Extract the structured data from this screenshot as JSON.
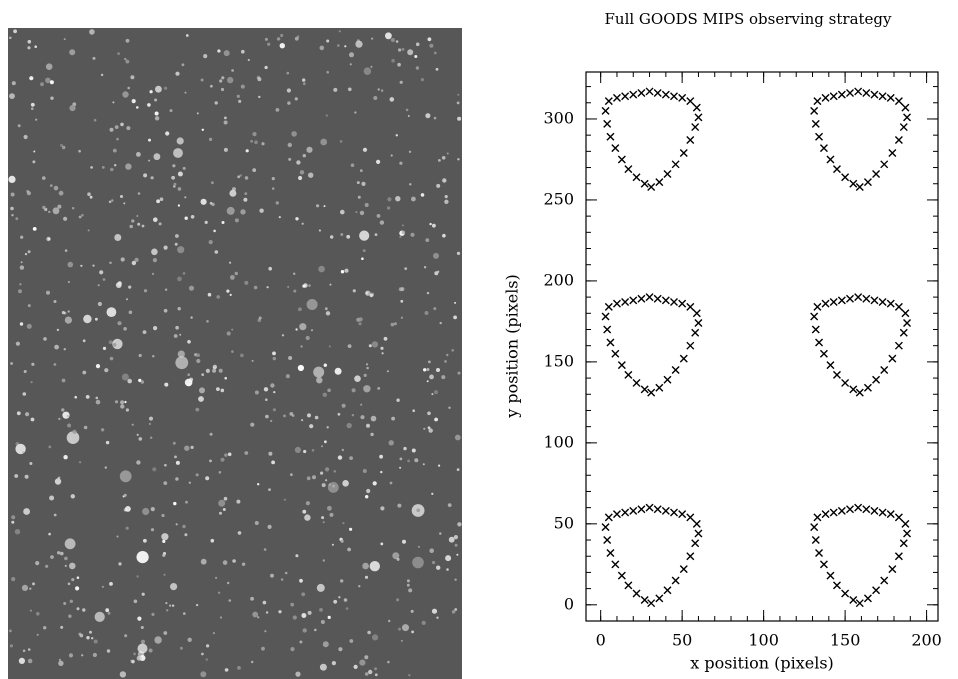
{
  "chart_data": {
    "type": "scatter",
    "title": "Full GOODS MIPS observing strategy",
    "xlabel": "x position (pixels)",
    "ylabel": "y position (pixels)",
    "xlim": [
      -9,
      207
    ],
    "ylim": [
      -10,
      329
    ],
    "xticks": [
      0,
      50,
      100,
      150,
      200
    ],
    "yticks": [
      0,
      50,
      100,
      150,
      200,
      250,
      300
    ],
    "minor_tick_step": 10,
    "marker": "x",
    "series": [
      {
        "color": "#000000",
        "x": [
          3,
          5,
          10,
          15,
          20,
          25,
          30,
          35,
          40,
          45,
          50,
          55,
          59,
          4,
          6,
          9,
          13,
          17,
          22,
          27,
          31,
          36,
          41,
          46,
          51,
          55,
          58,
          60,
          131,
          133,
          138,
          143,
          148,
          153,
          158,
          163,
          168,
          173,
          178,
          183,
          187,
          132,
          134,
          137,
          141,
          145,
          150,
          155,
          159,
          164,
          169,
          174,
          179,
          183,
          186,
          188,
          3,
          5,
          10,
          15,
          20,
          25,
          30,
          35,
          40,
          45,
          50,
          55,
          59,
          4,
          6,
          9,
          13,
          17,
          22,
          27,
          31,
          36,
          41,
          46,
          51,
          55,
          58,
          60,
          131,
          133,
          138,
          143,
          148,
          153,
          158,
          163,
          168,
          173,
          178,
          183,
          187,
          132,
          134,
          137,
          141,
          145,
          150,
          155,
          159,
          164,
          169,
          174,
          179,
          183,
          186,
          188,
          3,
          5,
          10,
          15,
          20,
          25,
          30,
          35,
          40,
          45,
          50,
          55,
          59,
          4,
          6,
          9,
          13,
          17,
          22,
          27,
          31,
          36,
          41,
          46,
          51,
          55,
          58,
          60,
          131,
          133,
          138,
          143,
          148,
          153,
          158,
          163,
          168,
          173,
          178,
          183,
          187,
          132,
          134,
          137,
          141,
          145,
          150,
          155,
          159,
          164,
          169,
          174,
          179,
          183,
          186,
          188
        ],
        "values": [
          48,
          54,
          56,
          57,
          58,
          59,
          60,
          59,
          58,
          57,
          56,
          54,
          50,
          40,
          32,
          25,
          18,
          12,
          7,
          3,
          1,
          4,
          9,
          15,
          22,
          30,
          38,
          44,
          48,
          54,
          56,
          57,
          58,
          59,
          60,
          59,
          58,
          57,
          56,
          54,
          50,
          40,
          32,
          25,
          18,
          12,
          7,
          3,
          1,
          4,
          9,
          15,
          22,
          30,
          38,
          44,
          178,
          184,
          186,
          187,
          188,
          189,
          190,
          189,
          188,
          187,
          186,
          184,
          180,
          170,
          162,
          155,
          148,
          142,
          137,
          133,
          131,
          134,
          139,
          145,
          152,
          160,
          168,
          174,
          178,
          184,
          186,
          187,
          188,
          189,
          190,
          189,
          188,
          187,
          186,
          184,
          180,
          170,
          162,
          155,
          148,
          142,
          137,
          133,
          131,
          134,
          139,
          145,
          152,
          160,
          168,
          174,
          305,
          311,
          313,
          314,
          315,
          316,
          317,
          316,
          315,
          314,
          313,
          311,
          307,
          297,
          289,
          282,
          275,
          269,
          264,
          260,
          258,
          261,
          266,
          272,
          279,
          287,
          295,
          301,
          305,
          311,
          313,
          314,
          315,
          316,
          317,
          316,
          315,
          314,
          313,
          311,
          307,
          297,
          289,
          282,
          275,
          269,
          264,
          260,
          258,
          261,
          266,
          272,
          279,
          287,
          295,
          301
        ]
      }
    ]
  }
}
